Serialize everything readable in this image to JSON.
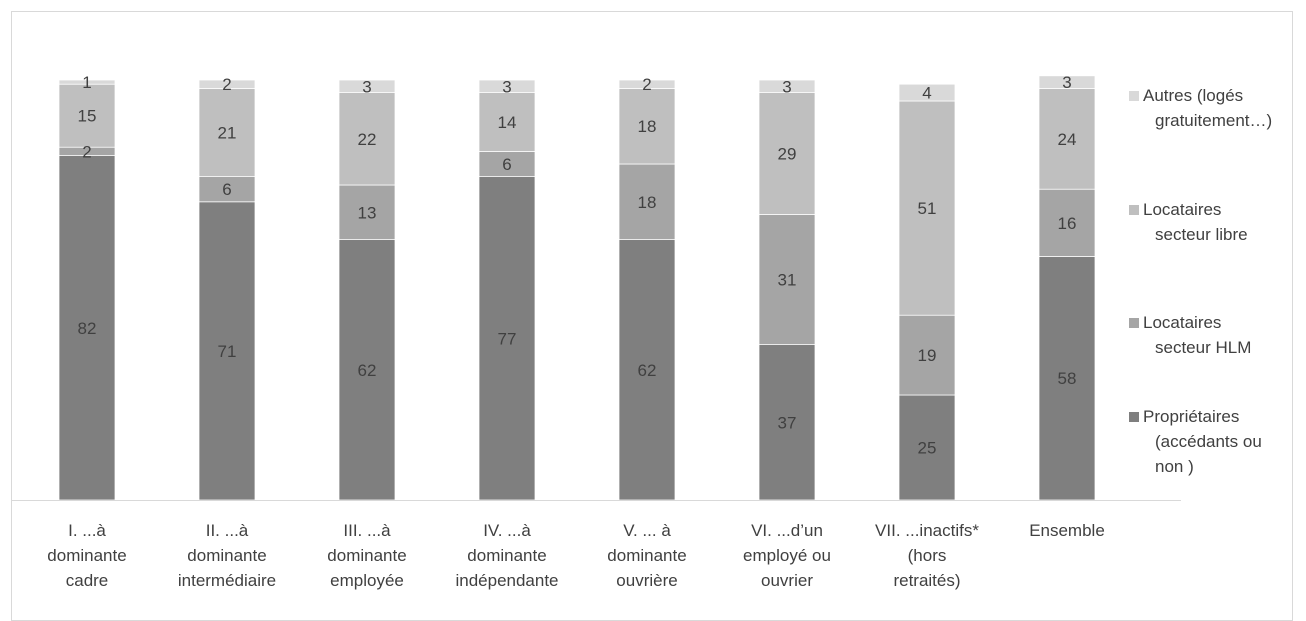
{
  "chart_data": {
    "type": "bar",
    "stacked": true,
    "categories": [
      [
        "I. ...à",
        "dominante",
        "cadre"
      ],
      [
        "II. ...à",
        "dominante",
        "intermédiaire"
      ],
      [
        "III. ...à",
        "dominante",
        "employée"
      ],
      [
        "IV. ...à",
        "dominante",
        "indépendante"
      ],
      [
        "V. ... à",
        "dominante",
        "ouvrière"
      ],
      [
        "VI. ...d’un",
        "employé ou",
        "ouvrier"
      ],
      [
        "VII. ...inactifs*",
        "(hors",
        "retraités)"
      ],
      [
        "Ensemble"
      ]
    ],
    "series": [
      {
        "name": [
          "Propriétaires",
          "(accédants ou",
          "non )"
        ],
        "color": "#7f7f7f",
        "values": [
          82,
          71,
          62,
          77,
          62,
          37,
          25,
          58
        ]
      },
      {
        "name": [
          "Locataires",
          "secteur HLM"
        ],
        "color": "#a5a5a5",
        "values": [
          2,
          6,
          13,
          6,
          18,
          31,
          19,
          16
        ]
      },
      {
        "name": [
          "Locataires",
          "secteur libre"
        ],
        "color": "#bfbfbf",
        "values": [
          15,
          21,
          22,
          14,
          18,
          29,
          51,
          24
        ]
      },
      {
        "name": [
          "Autres (logés",
          "gratuitement…)"
        ],
        "color": "#d9d9d9",
        "values": [
          1,
          2,
          3,
          3,
          2,
          3,
          4,
          3
        ]
      }
    ],
    "ylim": [
      0,
      100
    ],
    "grid": false,
    "legend_position": "right"
  }
}
